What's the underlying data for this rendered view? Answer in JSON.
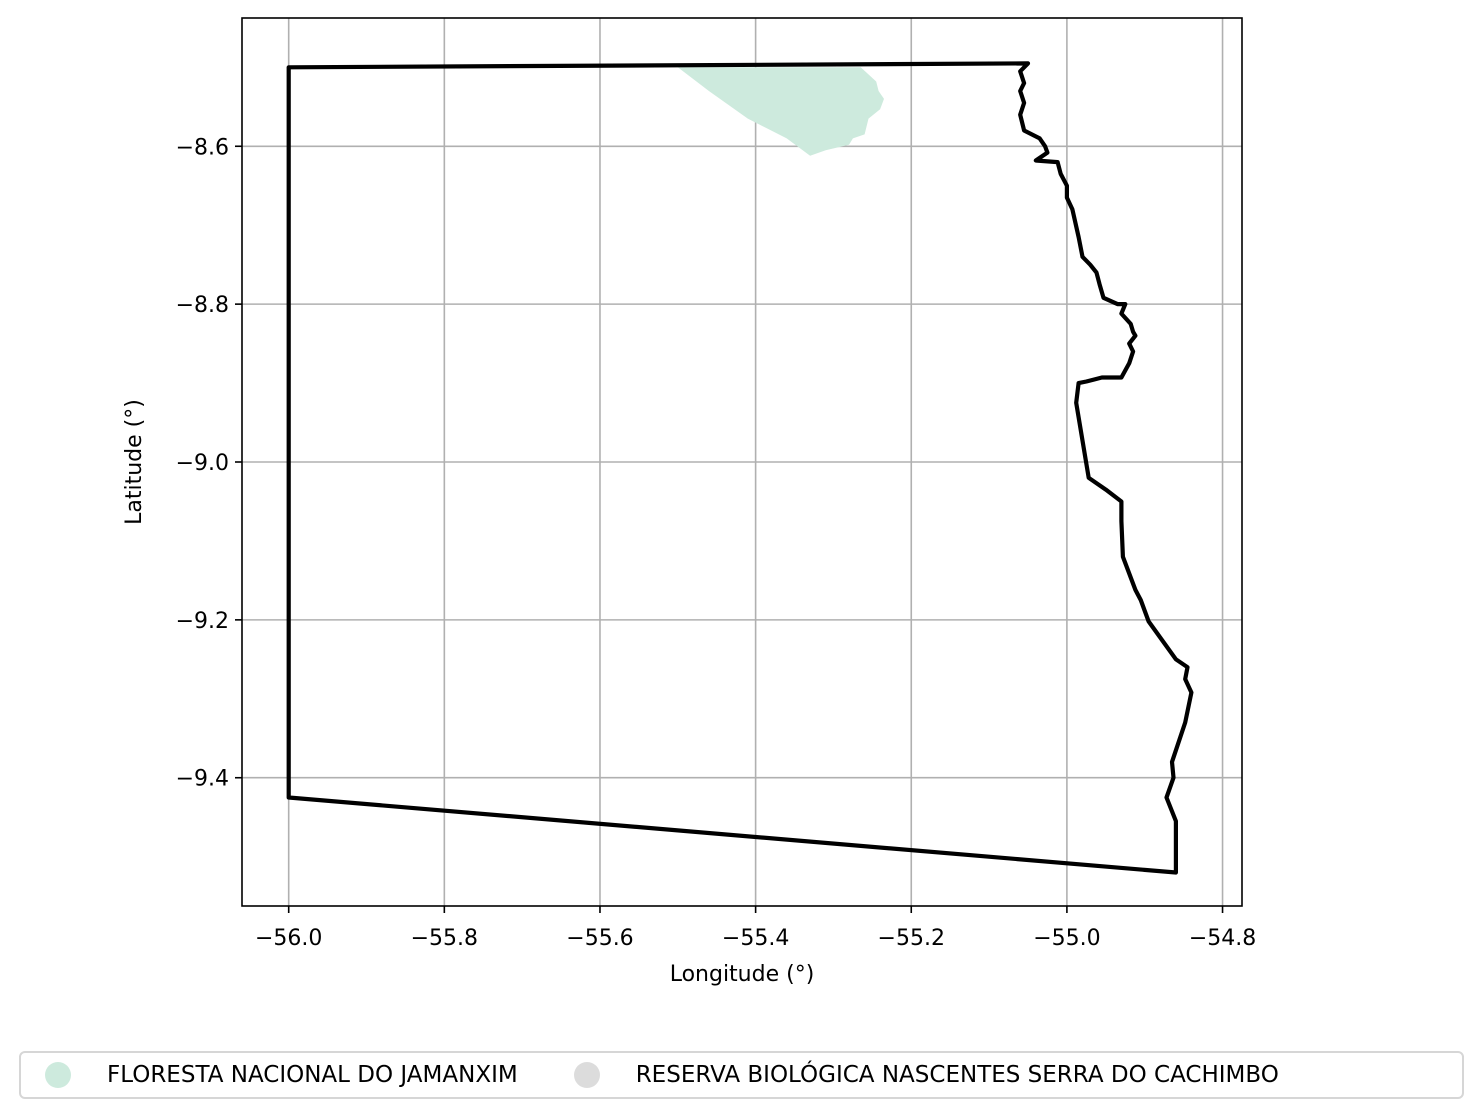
{
  "chart_data": {
    "type": "map",
    "xlabel": "Longitude (°)",
    "ylabel": "Latitude (°)",
    "xlim": [
      -56.06,
      -54.775
    ],
    "ylim": [
      -9.5625,
      -8.4375
    ],
    "xticks": [
      -56.0,
      -55.8,
      -55.6,
      -55.4,
      -55.2,
      -55.0,
      -54.8
    ],
    "yticks": [
      -8.6,
      -8.8,
      -9.0,
      -9.2,
      -9.4
    ],
    "xtick_labels": [
      "−56.0",
      "−55.8",
      "−55.6",
      "−55.4",
      "−55.2",
      "−55.0",
      "−54.8"
    ],
    "ytick_labels": [
      "−8.6",
      "−8.8",
      "−9.0",
      "−9.2",
      "−9.4"
    ],
    "grid": true,
    "legend_position": "bottom",
    "boundary": {
      "color": "#000000",
      "coords": [
        [
          -56.0,
          -8.5
        ],
        [
          -55.05,
          -8.495
        ],
        [
          -55.06,
          -8.505
        ],
        [
          -55.055,
          -8.52
        ],
        [
          -55.06,
          -8.53
        ],
        [
          -55.055,
          -8.545
        ],
        [
          -55.06,
          -8.56
        ],
        [
          -55.055,
          -8.58
        ],
        [
          -55.035,
          -8.59
        ],
        [
          -55.028,
          -8.6
        ],
        [
          -55.025,
          -8.608
        ],
        [
          -55.04,
          -8.618
        ],
        [
          -55.012,
          -8.62
        ],
        [
          -55.008,
          -8.635
        ],
        [
          -55.0,
          -8.65
        ],
        [
          -55.0,
          -8.665
        ],
        [
          -54.993,
          -8.68
        ],
        [
          -54.985,
          -8.715
        ],
        [
          -54.98,
          -8.74
        ],
        [
          -54.97,
          -8.75
        ],
        [
          -54.962,
          -8.76
        ],
        [
          -54.958,
          -8.775
        ],
        [
          -54.953,
          -8.792
        ],
        [
          -54.935,
          -8.8
        ],
        [
          -54.925,
          -8.8
        ],
        [
          -54.93,
          -8.812
        ],
        [
          -54.918,
          -8.825
        ],
        [
          -54.915,
          -8.835
        ],
        [
          -54.912,
          -8.84
        ],
        [
          -54.92,
          -8.85
        ],
        [
          -54.915,
          -8.86
        ],
        [
          -54.92,
          -8.875
        ],
        [
          -54.93,
          -8.893
        ],
        [
          -54.955,
          -8.893
        ],
        [
          -54.975,
          -8.898
        ],
        [
          -54.985,
          -8.9
        ],
        [
          -54.988,
          -8.925
        ],
        [
          -54.972,
          -9.02
        ],
        [
          -54.95,
          -9.035
        ],
        [
          -54.93,
          -9.05
        ],
        [
          -54.93,
          -9.075
        ],
        [
          -54.928,
          -9.12
        ],
        [
          -54.912,
          -9.162
        ],
        [
          -54.905,
          -9.175
        ],
        [
          -54.895,
          -9.202
        ],
        [
          -54.86,
          -9.25
        ],
        [
          -54.845,
          -9.26
        ],
        [
          -54.848,
          -9.275
        ],
        [
          -54.84,
          -9.292
        ],
        [
          -54.848,
          -9.33
        ],
        [
          -54.865,
          -9.38
        ],
        [
          -54.863,
          -9.4
        ],
        [
          -54.872,
          -9.425
        ],
        [
          -54.86,
          -9.455
        ],
        [
          -54.86,
          -9.52
        ],
        [
          -56.0,
          -9.425
        ],
        [
          -56.0,
          -8.5
        ]
      ]
    },
    "protected_areas": [
      {
        "name": "FLORESTA NACIONAL DO JAMANXIM",
        "color": "#cdeadd",
        "coords": [
          [
            -55.5,
            -8.5
          ],
          [
            -55.265,
            -8.5
          ],
          [
            -55.245,
            -8.518
          ],
          [
            -55.242,
            -8.53
          ],
          [
            -55.235,
            -8.54
          ],
          [
            -55.24,
            -8.553
          ],
          [
            -55.255,
            -8.565
          ],
          [
            -55.26,
            -8.585
          ],
          [
            -55.275,
            -8.59
          ],
          [
            -55.28,
            -8.598
          ],
          [
            -55.31,
            -8.605
          ],
          [
            -55.33,
            -8.612
          ],
          [
            -55.36,
            -8.59
          ],
          [
            -55.41,
            -8.565
          ],
          [
            -55.46,
            -8.53
          ],
          [
            -55.5,
            -8.5
          ]
        ]
      },
      {
        "name": "RESERVA BIOLÓGICA NASCENTES SERRA DO CACHIMBO",
        "color": "#dcdcdc",
        "coords": []
      }
    ]
  },
  "legend": {
    "items": [
      {
        "label": "FLORESTA NACIONAL DO JAMANXIM",
        "color": "#cdeadd"
      },
      {
        "label": "RESERVA BIOLÓGICA NASCENTES SERRA DO CACHIMBO",
        "color": "#dcdcdc"
      }
    ]
  }
}
